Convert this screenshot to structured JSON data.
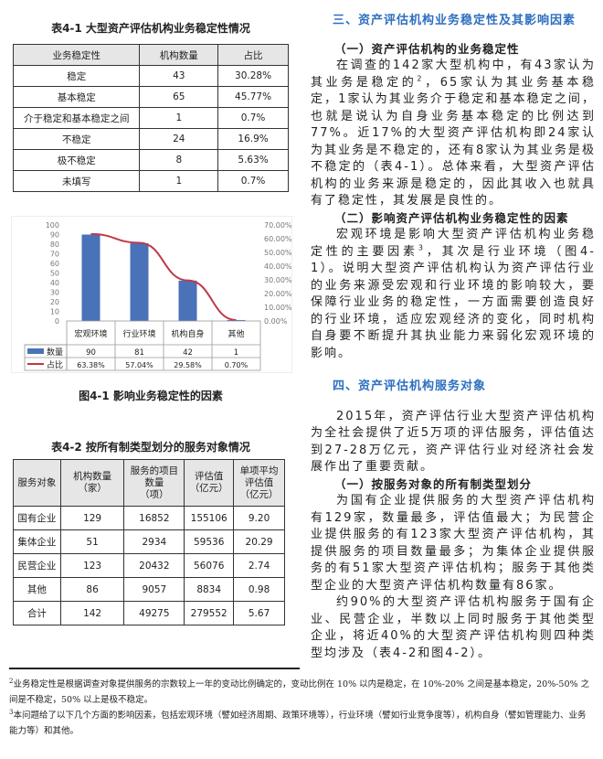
{
  "table1": {
    "title": "表4-1  大型资产评估机构业务稳定性情况",
    "headers": [
      "业务稳定性",
      "机构数量",
      "占比"
    ],
    "rows": [
      [
        "稳定",
        "43",
        "30.28%"
      ],
      [
        "基本稳定",
        "65",
        "45.77%"
      ],
      [
        "介于稳定和基本稳定之间",
        "1",
        "0.7%"
      ],
      [
        "不稳定",
        "24",
        "16.9%"
      ],
      [
        "极不稳定",
        "8",
        "5.63%"
      ],
      [
        "未填写",
        "1",
        "0.7%"
      ]
    ]
  },
  "chart_data": {
    "type": "bar",
    "categories": [
      "宏观环境",
      "行业环境",
      "机构自身",
      "其他"
    ],
    "series": [
      {
        "name": "数量",
        "type": "bar",
        "axis": "left",
        "values": [
          90,
          81,
          42,
          1
        ],
        "labels": [
          "90",
          "81",
          "42",
          "1"
        ],
        "color": "#4a72b8"
      },
      {
        "name": "占比",
        "type": "line",
        "axis": "right",
        "values": [
          63.38,
          57.04,
          29.58,
          0.7
        ],
        "labels": [
          "63.38%",
          "57.04%",
          "29.58%",
          "0.70%"
        ],
        "color": "#c0384a"
      }
    ],
    "ylim": [
      0,
      100
    ],
    "yticks": [
      "0",
      "10",
      "20",
      "30",
      "40",
      "50",
      "60",
      "70",
      "80",
      "90",
      "100"
    ],
    "y2lim": [
      0,
      70
    ],
    "y2ticks": [
      "0.00%",
      "10.00%",
      "20.00%",
      "30.00%",
      "40.00%",
      "50.00%",
      "60.00%",
      "70.00%"
    ],
    "grid": false,
    "legend": "data-table"
  },
  "figure1": {
    "caption": "图4-1    影响业务稳定性的因素"
  },
  "table2": {
    "title": "表4-2 按所有制类型划分的服务对象情况",
    "headers": [
      "服务对象",
      "机构数量\n（家）",
      "服务的项目\n数量\n（项）",
      "评估值\n（亿元）",
      "单项平均\n评估值\n（亿元）"
    ],
    "rows": [
      [
        "国有企业",
        "129",
        "16852",
        "155106",
        "9.20"
      ],
      [
        "集体企业",
        "51",
        "2934",
        "59536",
        "20.29"
      ],
      [
        "民营企业",
        "123",
        "20432",
        "56076",
        "2.74"
      ],
      [
        "其他",
        "86",
        "9057",
        "8834",
        "0.98"
      ],
      [
        "合计",
        "142",
        "49275",
        "279552",
        "5.67"
      ]
    ]
  },
  "right": {
    "h3": "三、资产评估机构业务稳定性及其影响因素",
    "s1": "（一）资产评估机构的业务稳定性",
    "p1a": "在调查的142家大型机构中，有43家认为其业务是稳定的",
    "p1sup": "2",
    "p1b": "，65家认为其业务基本稳定，1家认为其业务介于稳定和基本稳定之间，也就是说认为自身业务基本稳定的比例达到77%。近17%的大型资产评估机构即24家认为其业务是不稳定的，还有8家认为其业务是极不稳定的（表4-1）。总体来看，大型资产评估机构的业务来源是稳定的，因此其收入也就具有了稳定性，其发展是良性的。",
    "s2": "（二）影响资产评估机构业务稳定性的因素",
    "p2a": "宏观环境是影响大型资产评估机构业务稳定性的主要因素",
    "p2sup": "3",
    "p2b": "，其次是行业环境（图4-1）。说明大型资产评估机构认为资产评估行业的业务来源受宏观和行业环境的影响较大，要保障行业业务的稳定性，一方面需要创造良好的行业环境，适应宏观经济的变化，同时机构自身要不断提升其执业能力来弱化宏观环境的影响。",
    "h4": "四、资产评估机构服务对象",
    "p3": "2015年，资产评估行业大型资产评估机构为全社会提供了近5万项的评估服务，评估值达到27-28万亿元，资产评估行业对经济社会发展作出了重要贡献。",
    "s3": "（一）按服务对象的所有制类型划分",
    "p4": "为国有企业提供服务的大型资产评估机构有129家，数量最多，评估值最大；为民营企业提供服务的有123家大型资产评估机构，其提供服务的项目数量最多；为集体企业提供服务的有51家大型资产评估机构；服务于其他类型企业的大型资产评估机构数量有86家。",
    "p5": "约90%的大型资产评估机构服务于国有企业、民营企业，半数以上同时服务于其他类型企业，将近40%的大型资产评估机构则四种类型均涉及（表4-2和图4-2）。"
  },
  "footnotes": [
    {
      "mark": "2",
      "text": "业务稳定性是根据调查对象提供服务的宗数较上一年的变动比例确定的，变动比例在 10% 以内是稳定，在 10%-20% 之间是基本稳定，20%-50% 之间是不稳定，50% 以上是极不稳定。"
    },
    {
      "mark": "3",
      "text": "本问题给了以下几个方面的影响因素，包括宏观环境（譬如经济周期、政策环境等），行业环境（譬如行业竞争度等），机构自身（譬如管理能力、业务能力等）和其他。"
    }
  ]
}
